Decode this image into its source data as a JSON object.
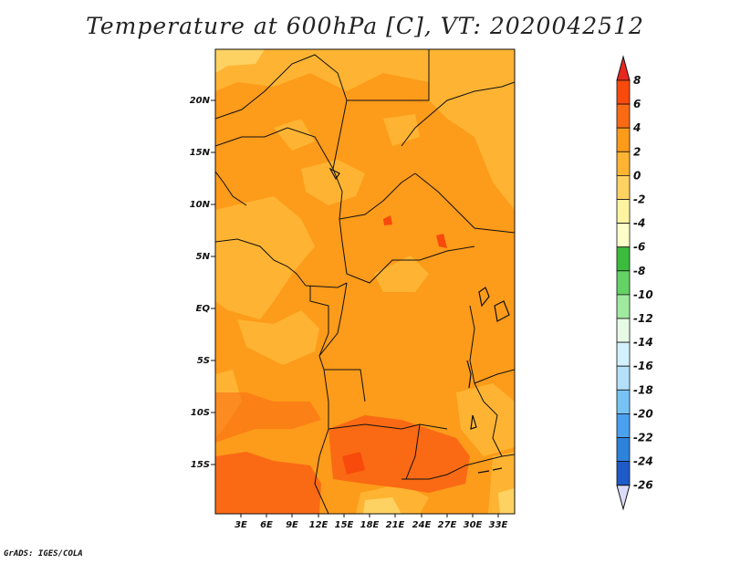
{
  "title": "Temperature at 600hPa [C], VT: 2020042512",
  "credit": "GrADS: IGES/COLA",
  "map": {
    "lat_ticks": [
      "20N",
      "15N",
      "10N",
      "5N",
      "EQ",
      "5S",
      "10S",
      "15S"
    ],
    "lon_ticks": [
      "3E",
      "6E",
      "9E",
      "12E",
      "15E",
      "18E",
      "21E",
      "24E",
      "27E",
      "30E",
      "33E"
    ]
  },
  "colorbar": {
    "labels": [
      "8",
      "6",
      "4",
      "2",
      "0",
      "-2",
      "-4",
      "-6",
      "-8",
      "-10",
      "-12",
      "-14",
      "-16",
      "-18",
      "-20",
      "-22",
      "-24",
      "-26"
    ],
    "colors": [
      "#e8281e",
      "#f84a0c",
      "#fa6a14",
      "#fd9b1a",
      "#feb432",
      "#fed262",
      "#fef3a0",
      "#fefec8",
      "#3cbc3c",
      "#64d264",
      "#a0eaa0",
      "#e6fae6",
      "#d2f0ff",
      "#b4e0fa",
      "#78c3f5",
      "#4ba0f0",
      "#2d82dc",
      "#1e5ac8",
      "#0a2896",
      "#000064",
      "#dcdcfa"
    ],
    "colors_note_unused": ""
  }
}
